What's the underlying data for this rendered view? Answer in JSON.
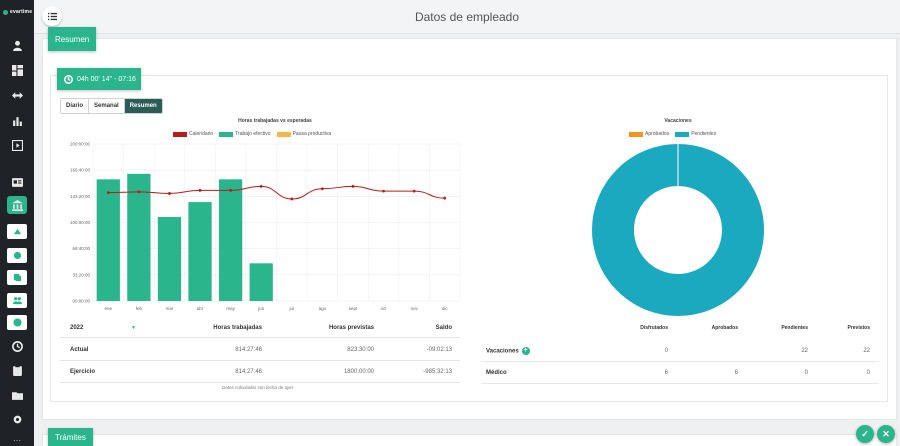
{
  "app": {
    "logo": "evartime"
  },
  "header": {
    "title": "Datos de empleado"
  },
  "sections": {
    "resumen": "Resumen",
    "tramites": "Trámites"
  },
  "timer": {
    "label": "04h 00' 14'' - 07:16"
  },
  "period_tabs": [
    {
      "label": "Diario",
      "active": false
    },
    {
      "label": "Semanal",
      "active": false
    },
    {
      "label": "Resumen",
      "active": true
    }
  ],
  "colors": {
    "accent": "#2bb58c",
    "calendario": "#b81c1c",
    "trabajo": "#2bb58c",
    "pausa": "#f2b84a",
    "aprobados": "#f0961e",
    "pendientes": "#1aa9bf"
  },
  "chart_data": [
    {
      "type": "bar",
      "title": "Horas trabajadas vs esperadas",
      "categories": [
        "ene",
        "feb",
        "mar",
        "abr",
        "may",
        "jun",
        "jul",
        "ago",
        "sept",
        "oct",
        "nov",
        "dic"
      ],
      "series": [
        {
          "name": "Calendario",
          "type": "line",
          "values": [
            138,
            139,
            137,
            141,
            141,
            146,
            130,
            143,
            146,
            140,
            140,
            131
          ]
        },
        {
          "name": "Trabajo efectivo",
          "type": "bar",
          "values": [
            155,
            162,
            107,
            126,
            155,
            48,
            null,
            null,
            null,
            null,
            null,
            null
          ]
        },
        {
          "name": "Pausa productiva",
          "type": "bar",
          "values": [
            0,
            0,
            0,
            0,
            0,
            0,
            0,
            0,
            0,
            0,
            0,
            0
          ]
        }
      ],
      "y_ticks": [
        "00:00:00",
        "33:20:00",
        "66:40:00",
        "100:00:00",
        "133:20:00",
        "166:40:00",
        "200:00:00"
      ],
      "ylim": [
        0,
        200
      ],
      "grid": true,
      "legend": "top"
    },
    {
      "type": "pie",
      "title": "Vacaciones",
      "labels": [
        "Aprobados",
        "Pendientes"
      ],
      "values": [
        0,
        22
      ],
      "legend": "top"
    }
  ],
  "hours_table": {
    "year": "2022",
    "columns": [
      "Horas trabajadas",
      "Horas previstas",
      "Saldo"
    ],
    "rows": [
      {
        "label": "Actual",
        "worked": "814:27:46",
        "expected": "823:30:00",
        "balance": "-09:02:13"
      },
      {
        "label": "Ejercicio",
        "worked": "814:27:46",
        "expected": "1800:00:00",
        "balance": "-985:32:13"
      }
    ],
    "note": "Datos calculados con fecha de ayer"
  },
  "leave_table": {
    "columns": [
      "Disfrutados",
      "Aprobados",
      "Pendientes",
      "Previstos"
    ],
    "rows": [
      {
        "label": "Vacaciones",
        "disfrutados": "0",
        "aprobados": "",
        "pendientes": "22",
        "previstos": "22"
      },
      {
        "label": "Médico",
        "disfrutados": "6",
        "aprobados": "6",
        "pendientes": "0",
        "previstos": "0"
      }
    ]
  }
}
